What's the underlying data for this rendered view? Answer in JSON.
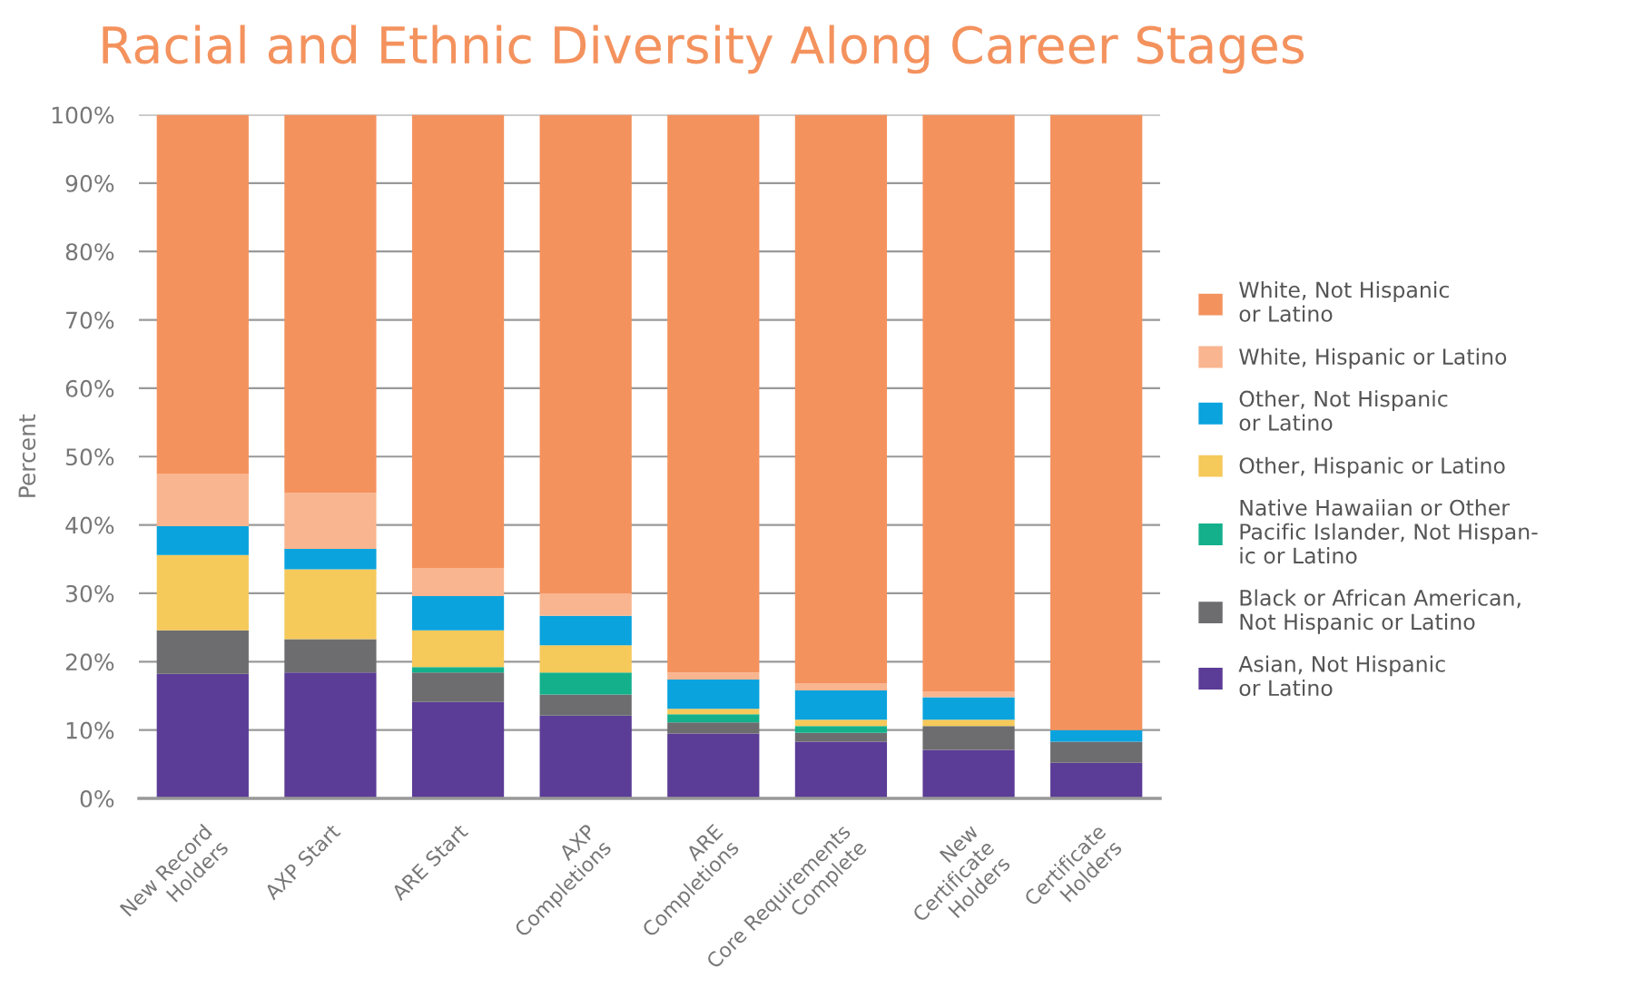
{
  "chart_data": {
    "type": "bar",
    "stacked": true,
    "title": "Racial and Ethnic Diversity Along Career Stages",
    "ylabel": "Percent",
    "categories": [
      "New Record\nHolders",
      "AXP Start",
      "ARE Start",
      "AXP\nCompletions",
      "ARE\nCompletions",
      "Core Requirements\nComplete",
      "New\nCertificate\nHolders",
      "Certificate\nHolders"
    ],
    "series": [
      {
        "name": "Asian, Not Hispanic\nor Latino",
        "color": "#5b3c96",
        "values": [
          18.2,
          18.4,
          14.1,
          12.1,
          9.5,
          8.3,
          7.1,
          5.2
        ]
      },
      {
        "name": "Black or African American,\nNot Hispanic or Latino",
        "color": "#6d6d6f",
        "values": [
          6.4,
          4.9,
          4.3,
          3.1,
          1.6,
          1.3,
          3.5,
          3.1
        ]
      },
      {
        "name": "Native Hawaiian or Other\nPacific Islander, Not Hispan-\nic or Latino",
        "color": "#14b08c",
        "values": [
          0,
          0,
          0.8,
          3.2,
          1.2,
          1.0,
          0,
          0
        ]
      },
      {
        "name": "Other, Hispanic or Latino",
        "color": "#f5c95a",
        "values": [
          11.0,
          10.2,
          5.4,
          4.0,
          0.8,
          0.9,
          0.9,
          0
        ]
      },
      {
        "name": "Other, Not Hispanic\nor Latino",
        "color": "#0aa3dd",
        "values": [
          4.2,
          3.0,
          5.0,
          4.3,
          4.3,
          4.3,
          3.3,
          1.7
        ]
      },
      {
        "name": "White, Hispanic or Latino",
        "color": "#f9b58f",
        "values": [
          7.7,
          8.2,
          4.1,
          3.3,
          1.0,
          1.0,
          0.8,
          0
        ]
      },
      {
        "name": "White, Not Hispanic\nor Latino",
        "color": "#f4925e",
        "values": [
          52.5,
          55.3,
          66.3,
          70.0,
          81.6,
          83.2,
          84.4,
          90.0
        ]
      }
    ],
    "ylim": [
      0,
      100
    ],
    "yticks": [
      {
        "value": 0,
        "label": "0%"
      },
      {
        "value": 10,
        "label": "10%"
      },
      {
        "value": 20,
        "label": "20%"
      },
      {
        "value": 30,
        "label": "30%"
      },
      {
        "value": 40,
        "label": "40%"
      },
      {
        "value": 50,
        "label": "50%"
      },
      {
        "value": 60,
        "label": "60%"
      },
      {
        "value": 70,
        "label": "70%"
      },
      {
        "value": 80,
        "label": "80%"
      },
      {
        "value": 90,
        "label": "90%"
      },
      {
        "value": 100,
        "label": "100%"
      }
    ],
    "grid": "y",
    "legend": "right"
  }
}
